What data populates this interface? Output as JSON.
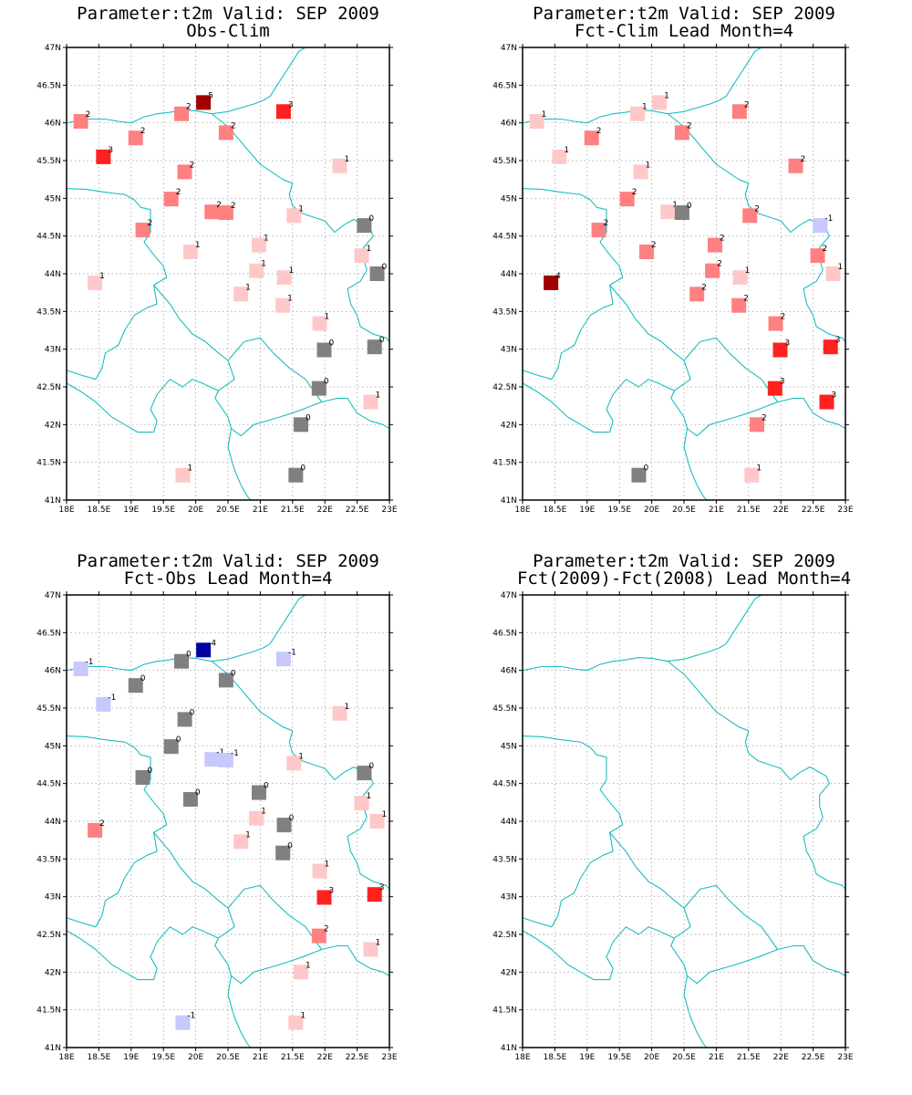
{
  "colors": {
    "-4": "#0000a0",
    "-1": "#c8c8ff",
    "0": "#808080",
    "1": "#ffc8c8",
    "2": "#ff8080",
    "3": "#ff2020",
    "4": "#a00000",
    "5": "#a00000",
    "border": "#1bbdc0"
  },
  "axes": {
    "lon_ticks": [
      "18E",
      "18.5E",
      "19E",
      "19.5E",
      "20E",
      "20.5E",
      "21E",
      "21.5E",
      "22E",
      "22.5E",
      "23E"
    ],
    "lat_ticks": [
      "41N",
      "41.5N",
      "42N",
      "42.5N",
      "43N",
      "43.5N",
      "44N",
      "44.5N",
      "45N",
      "45.5N",
      "46N",
      "46.5N",
      "47N"
    ],
    "lon_range": [
      18,
      23
    ],
    "lat_range": [
      41,
      47
    ]
  },
  "panels": [
    {
      "title1": "Parameter:t2m Valid: SEP 2009",
      "title2": "Obs-Clim",
      "points": [
        [
          18.22,
          46.02,
          2
        ],
        [
          20.12,
          46.27,
          5
        ],
        [
          19.78,
          46.12,
          2
        ],
        [
          21.36,
          46.15,
          3
        ],
        [
          20.47,
          45.87,
          2
        ],
        [
          19.07,
          45.8,
          2
        ],
        [
          18.57,
          45.55,
          3
        ],
        [
          19.83,
          45.35,
          2
        ],
        [
          22.23,
          45.43,
          1
        ],
        [
          19.62,
          44.99,
          2
        ],
        [
          20.25,
          44.82,
          2
        ],
        [
          20.47,
          44.81,
          2
        ],
        [
          21.52,
          44.77,
          1
        ],
        [
          22.61,
          44.64,
          0
        ],
        [
          19.18,
          44.58,
          2
        ],
        [
          20.98,
          44.38,
          1
        ],
        [
          19.92,
          44.29,
          1
        ],
        [
          22.57,
          44.24,
          1
        ],
        [
          22.81,
          44.0,
          0
        ],
        [
          20.94,
          44.04,
          1
        ],
        [
          21.37,
          43.95,
          1
        ],
        [
          18.44,
          43.88,
          1
        ],
        [
          20.7,
          43.73,
          1
        ],
        [
          21.35,
          43.58,
          1
        ],
        [
          21.92,
          43.34,
          1
        ],
        [
          21.99,
          42.99,
          0
        ],
        [
          22.77,
          43.03,
          0
        ],
        [
          21.91,
          42.48,
          0
        ],
        [
          22.71,
          42.3,
          1
        ],
        [
          21.63,
          42.0,
          0
        ],
        [
          19.8,
          41.33,
          1
        ],
        [
          21.55,
          41.33,
          0
        ]
      ]
    },
    {
      "title1": "Parameter:t2m Valid: SEP 2009",
      "title2": "Fct-Clim Lead Month=4",
      "points": [
        [
          18.22,
          46.02,
          1
        ],
        [
          20.12,
          46.27,
          1
        ],
        [
          19.78,
          46.12,
          1
        ],
        [
          21.36,
          46.15,
          2
        ],
        [
          20.47,
          45.87,
          2
        ],
        [
          19.07,
          45.8,
          2
        ],
        [
          18.57,
          45.55,
          1
        ],
        [
          19.83,
          45.35,
          1
        ],
        [
          22.23,
          45.43,
          2
        ],
        [
          19.62,
          44.99,
          2
        ],
        [
          20.25,
          44.82,
          1
        ],
        [
          20.47,
          44.81,
          0
        ],
        [
          21.52,
          44.77,
          2
        ],
        [
          22.61,
          44.64,
          -1
        ],
        [
          19.18,
          44.58,
          2
        ],
        [
          20.98,
          44.38,
          2
        ],
        [
          19.92,
          44.29,
          2
        ],
        [
          22.57,
          44.24,
          2
        ],
        [
          22.81,
          44.0,
          1
        ],
        [
          20.94,
          44.04,
          2
        ],
        [
          21.37,
          43.95,
          1
        ],
        [
          18.44,
          43.88,
          4
        ],
        [
          20.7,
          43.73,
          2
        ],
        [
          21.35,
          43.58,
          2
        ],
        [
          21.92,
          43.34,
          2
        ],
        [
          21.99,
          42.99,
          3
        ],
        [
          22.77,
          43.03,
          3
        ],
        [
          21.91,
          42.48,
          3
        ],
        [
          22.71,
          42.3,
          3
        ],
        [
          21.63,
          42.0,
          2
        ],
        [
          19.8,
          41.33,
          0
        ],
        [
          21.55,
          41.33,
          1
        ]
      ]
    },
    {
      "title1": "Parameter:t2m Valid: SEP 2009",
      "title2": "Fct-Obs Lead Month=4",
      "points": [
        [
          18.22,
          46.02,
          -1
        ],
        [
          20.12,
          46.27,
          -4
        ],
        [
          19.78,
          46.12,
          0
        ],
        [
          21.36,
          46.15,
          -1
        ],
        [
          20.47,
          45.87,
          0
        ],
        [
          19.07,
          45.8,
          0
        ],
        [
          18.57,
          45.55,
          -1
        ],
        [
          19.83,
          45.35,
          0
        ],
        [
          22.23,
          45.43,
          1
        ],
        [
          19.62,
          44.99,
          0
        ],
        [
          20.25,
          44.82,
          -1
        ],
        [
          20.47,
          44.81,
          -1
        ],
        [
          21.52,
          44.77,
          1
        ],
        [
          22.61,
          44.64,
          0
        ],
        [
          19.18,
          44.58,
          0
        ],
        [
          20.98,
          44.38,
          0
        ],
        [
          19.92,
          44.29,
          0
        ],
        [
          22.57,
          44.24,
          1
        ],
        [
          22.81,
          44.0,
          1
        ],
        [
          20.94,
          44.04,
          1
        ],
        [
          21.37,
          43.95,
          0
        ],
        [
          18.44,
          43.88,
          2
        ],
        [
          20.7,
          43.73,
          1
        ],
        [
          21.35,
          43.58,
          0
        ],
        [
          21.92,
          43.34,
          1
        ],
        [
          21.99,
          42.99,
          3
        ],
        [
          22.77,
          43.03,
          3
        ],
        [
          21.91,
          42.48,
          2
        ],
        [
          22.71,
          42.3,
          1
        ],
        [
          21.63,
          42.0,
          1
        ],
        [
          19.8,
          41.33,
          -1
        ],
        [
          21.55,
          41.33,
          1
        ]
      ]
    },
    {
      "title1": "Parameter:t2m Valid: SEP 2009",
      "title2": "Fct(2009)-Fct(2008) Lead Month=4",
      "points": []
    }
  ],
  "borders": [
    [
      [
        18.0,
        46.0
      ],
      [
        18.3,
        46.05
      ],
      [
        18.6,
        46.05
      ],
      [
        18.8,
        46.02
      ],
      [
        19.0,
        46.0
      ],
      [
        19.2,
        46.08
      ],
      [
        19.4,
        46.12
      ],
      [
        19.6,
        46.14
      ],
      [
        19.8,
        46.17
      ],
      [
        20.0,
        46.16
      ],
      [
        20.25,
        46.12
      ],
      [
        20.5,
        46.15
      ],
      [
        20.7,
        46.2
      ],
      [
        20.9,
        46.25
      ],
      [
        21.05,
        46.3
      ],
      [
        21.15,
        46.35
      ],
      [
        21.3,
        46.55
      ],
      [
        21.45,
        46.75
      ],
      [
        21.6,
        46.95
      ],
      [
        21.7,
        47.0
      ]
    ],
    [
      [
        20.25,
        46.12
      ],
      [
        20.35,
        46.05
      ],
      [
        20.5,
        45.95
      ],
      [
        20.7,
        45.75
      ],
      [
        20.8,
        45.65
      ],
      [
        21.0,
        45.45
      ],
      [
        21.35,
        45.25
      ],
      [
        21.5,
        45.2
      ],
      [
        21.45,
        45.05
      ],
      [
        21.5,
        44.9
      ],
      [
        21.65,
        44.8
      ],
      [
        22.0,
        44.7
      ],
      [
        22.15,
        44.55
      ],
      [
        22.3,
        44.65
      ],
      [
        22.45,
        44.72
      ],
      [
        22.7,
        44.6
      ],
      [
        22.75,
        44.5
      ],
      [
        22.6,
        44.35
      ],
      [
        22.6,
        44.2
      ],
      [
        22.65,
        44.05
      ],
      [
        22.55,
        43.9
      ],
      [
        22.35,
        43.8
      ],
      [
        22.4,
        43.6
      ],
      [
        22.5,
        43.45
      ],
      [
        22.55,
        43.3
      ],
      [
        22.75,
        43.2
      ],
      [
        22.95,
        43.15
      ],
      [
        23.0,
        43.1
      ]
    ],
    [
      [
        18.0,
        45.13
      ],
      [
        18.3,
        45.12
      ],
      [
        18.6,
        45.08
      ],
      [
        18.9,
        45.05
      ],
      [
        19.05,
        44.98
      ],
      [
        19.15,
        44.88
      ],
      [
        19.3,
        44.85
      ],
      [
        19.3,
        44.55
      ],
      [
        19.2,
        44.42
      ],
      [
        19.35,
        44.25
      ],
      [
        19.5,
        44.1
      ],
      [
        19.55,
        43.95
      ],
      [
        19.35,
        43.85
      ],
      [
        19.4,
        43.6
      ],
      [
        19.25,
        43.55
      ],
      [
        19.05,
        43.45
      ],
      [
        18.9,
        43.25
      ],
      [
        18.8,
        43.05
      ],
      [
        18.6,
        42.95
      ],
      [
        18.55,
        42.75
      ],
      [
        18.45,
        42.6
      ],
      [
        18.25,
        42.65
      ],
      [
        18.0,
        42.72
      ]
    ],
    [
      [
        19.35,
        43.85
      ],
      [
        19.6,
        43.6
      ],
      [
        19.75,
        43.4
      ],
      [
        19.95,
        43.2
      ],
      [
        20.15,
        43.1
      ],
      [
        20.35,
        42.95
      ],
      [
        20.5,
        42.85
      ],
      [
        20.6,
        42.6
      ],
      [
        20.35,
        42.45
      ],
      [
        20.1,
        42.55
      ],
      [
        19.95,
        42.6
      ],
      [
        19.8,
        42.5
      ],
      [
        19.6,
        42.6
      ],
      [
        19.4,
        42.4
      ],
      [
        19.3,
        42.2
      ],
      [
        19.4,
        42.05
      ],
      [
        19.35,
        41.9
      ]
    ],
    [
      [
        20.5,
        42.85
      ],
      [
        20.75,
        43.1
      ],
      [
        21.0,
        43.15
      ],
      [
        21.2,
        42.95
      ],
      [
        21.45,
        42.75
      ],
      [
        21.7,
        42.6
      ],
      [
        21.95,
        42.3
      ],
      [
        21.65,
        42.2
      ],
      [
        21.3,
        42.1
      ],
      [
        20.9,
        42.0
      ],
      [
        20.7,
        41.85
      ],
      [
        20.55,
        41.95
      ],
      [
        20.5,
        42.1
      ],
      [
        20.3,
        42.35
      ],
      [
        20.35,
        42.45
      ]
    ],
    [
      [
        20.55,
        41.95
      ],
      [
        20.5,
        41.7
      ],
      [
        20.6,
        41.4
      ],
      [
        20.7,
        41.2
      ],
      [
        20.8,
        41.05
      ],
      [
        20.85,
        41.0
      ]
    ],
    [
      [
        21.95,
        42.3
      ],
      [
        22.2,
        42.35
      ],
      [
        22.35,
        42.35
      ],
      [
        22.5,
        42.15
      ],
      [
        22.7,
        42.05
      ],
      [
        22.9,
        42.0
      ],
      [
        23.0,
        41.95
      ]
    ],
    [
      [
        18.0,
        42.55
      ],
      [
        18.2,
        42.45
      ],
      [
        18.45,
        42.3
      ],
      [
        18.7,
        42.1
      ],
      [
        18.9,
        42.0
      ],
      [
        19.1,
        41.9
      ],
      [
        19.35,
        41.9
      ]
    ]
  ]
}
